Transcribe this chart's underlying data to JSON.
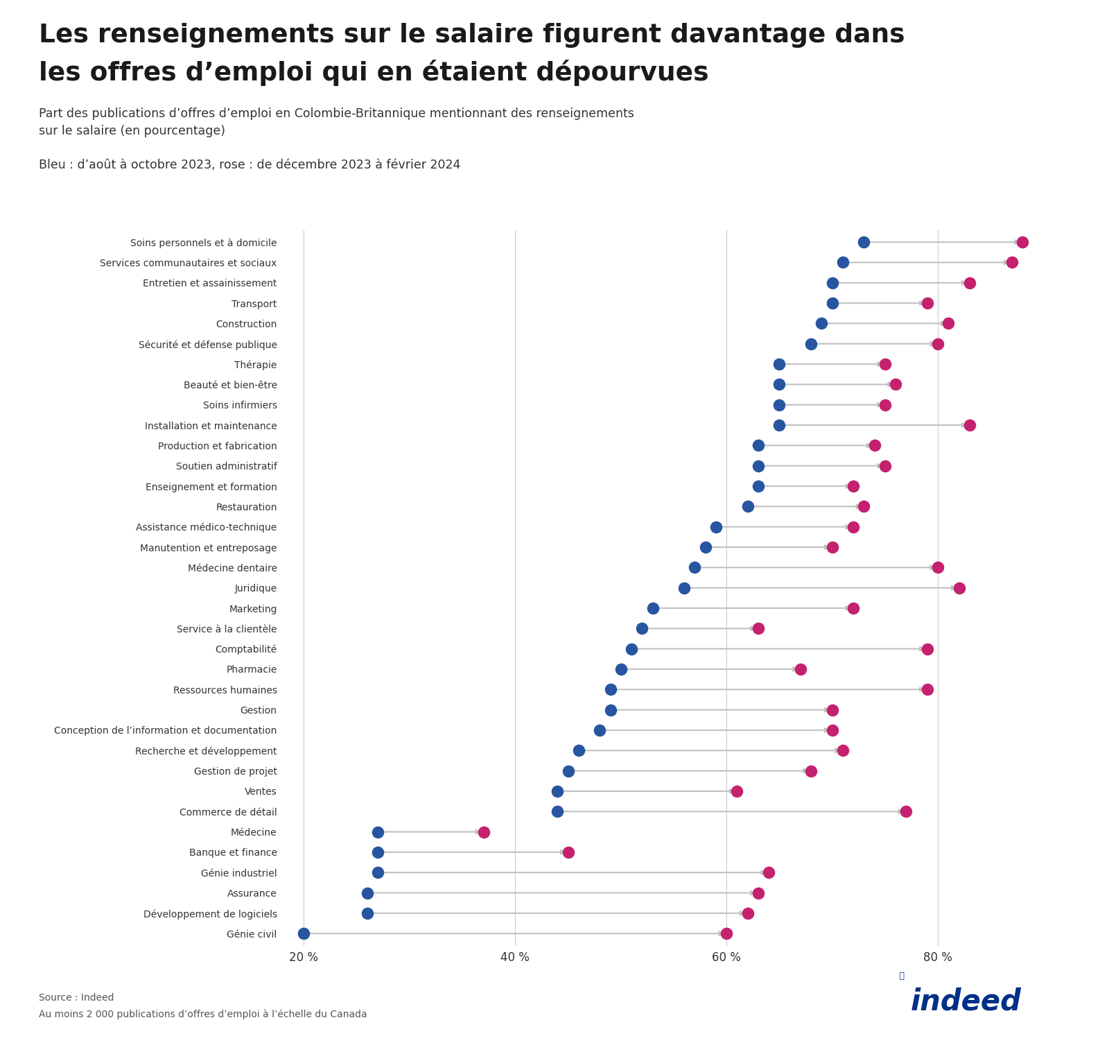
{
  "title_line1": "Les renseignements sur le salaire figurent davantage dans",
  "title_line2": "les offres d’emploi qui en étaient dépourvues",
  "subtitle": "Part des publications d’offres d’emploi en Colombie-Britannique mentionnant des renseignements\nsur le salaire (en pourcentage)",
  "legend_text": "Bleu : d’août à octobre 2023, rose : de décembre 2023 à février 2024",
  "source": "Source : Indeed",
  "footnote": "Au moins 2 000 publications d’offres d’emploi à l’échelle du Canada",
  "categories": [
    "Soins personnels et à domicile",
    "Services communautaires et sociaux",
    "Entretien et assainissement",
    "Transport",
    "Construction",
    "Sécurité et défense publique",
    "Thérapie",
    "Beauté et bien-être",
    "Soins infirmiers",
    "Installation et maintenance",
    "Production et fabrication",
    "Soutien administratif",
    "Enseignement et formation",
    "Restauration",
    "Assistance médico-technique",
    "Manutention et entreposage",
    "Médecine dentaire",
    "Juridique",
    "Marketing",
    "Service à la clientèle",
    "Comptabilité",
    "Pharmacie",
    "Ressources humaines",
    "Gestion",
    "Conception de l’information et documentation",
    "Recherche et développement",
    "Gestion de projet",
    "Ventes",
    "Commerce de détail",
    "Médecine",
    "Banque et finance",
    "Génie industriel",
    "Assurance",
    "Développement de logiciels",
    "Génie civil"
  ],
  "blue_values": [
    73,
    71,
    70,
    70,
    69,
    68,
    65,
    65,
    65,
    65,
    63,
    63,
    63,
    62,
    59,
    58,
    57,
    56,
    53,
    52,
    51,
    50,
    49,
    49,
    48,
    46,
    45,
    44,
    44,
    27,
    27,
    27,
    26,
    26,
    20
  ],
  "pink_values": [
    88,
    87,
    83,
    79,
    81,
    80,
    75,
    76,
    75,
    83,
    74,
    75,
    72,
    73,
    72,
    70,
    80,
    82,
    72,
    63,
    79,
    67,
    79,
    70,
    70,
    71,
    68,
    61,
    77,
    37,
    45,
    64,
    63,
    62,
    60
  ],
  "blue_color": "#2855a0",
  "pink_color": "#c4216e",
  "arrow_color": "#c0c0c0",
  "background_color": "#ffffff",
  "xlim": [
    18,
    92
  ],
  "xticks": [
    20,
    40,
    60,
    80
  ],
  "xticklabels": [
    "20 %",
    "40 %",
    "60 %",
    "80 %"
  ]
}
